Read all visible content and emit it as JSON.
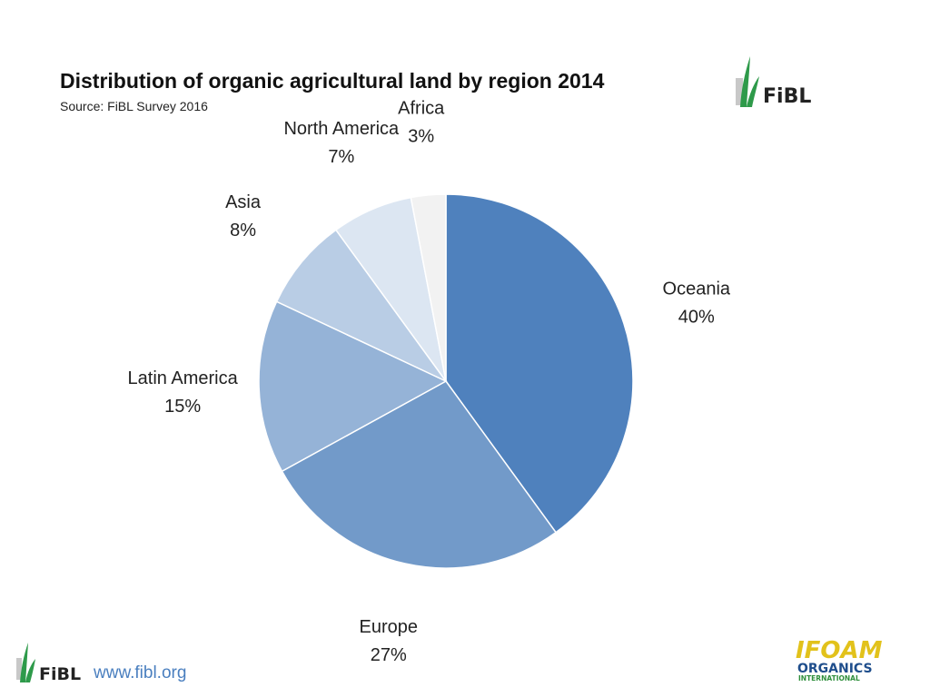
{
  "header": {
    "title": "Distribution of organic agricultural land by region 2014",
    "source": "Source: FiBL Survey 2016"
  },
  "chart_data": {
    "type": "pie",
    "title": "Distribution of organic agricultural land by region 2014",
    "slices": [
      {
        "label": "Oceania",
        "value": 40,
        "value_label": "40%",
        "color": "#4f81bd"
      },
      {
        "label": "Europe",
        "value": 27,
        "value_label": "27%",
        "color": "#729ac9"
      },
      {
        "label": "Latin America",
        "value": 15,
        "value_label": "15%",
        "color": "#95b3d7"
      },
      {
        "label": "Asia",
        "value": 8,
        "value_label": "8%",
        "color": "#b9cde5"
      },
      {
        "label": "North America",
        "value": 7,
        "value_label": "7%",
        "color": "#dce6f2"
      },
      {
        "label": "Africa",
        "value": 3,
        "value_label": "3%",
        "color": "#f2f2f2"
      }
    ],
    "start": "top, clockwise",
    "legend": "none (direct labels)"
  },
  "logos": {
    "top_right": "FiBL",
    "bottom_left": "FiBL",
    "bottom_right_line1": "IFOAM",
    "bottom_right_line2": "ORGANICS",
    "bottom_right_line3": "INTERNATIONAL"
  },
  "footer": {
    "url": "www.fibl.org"
  },
  "colors": {
    "fibl_green": "#2e9a4a",
    "ifoam_yellow": "#e2c21b",
    "ifoam_green": "#2f8f3c",
    "ifoam_blue": "#1f4e8c",
    "link_blue": "#4a7fbf"
  }
}
